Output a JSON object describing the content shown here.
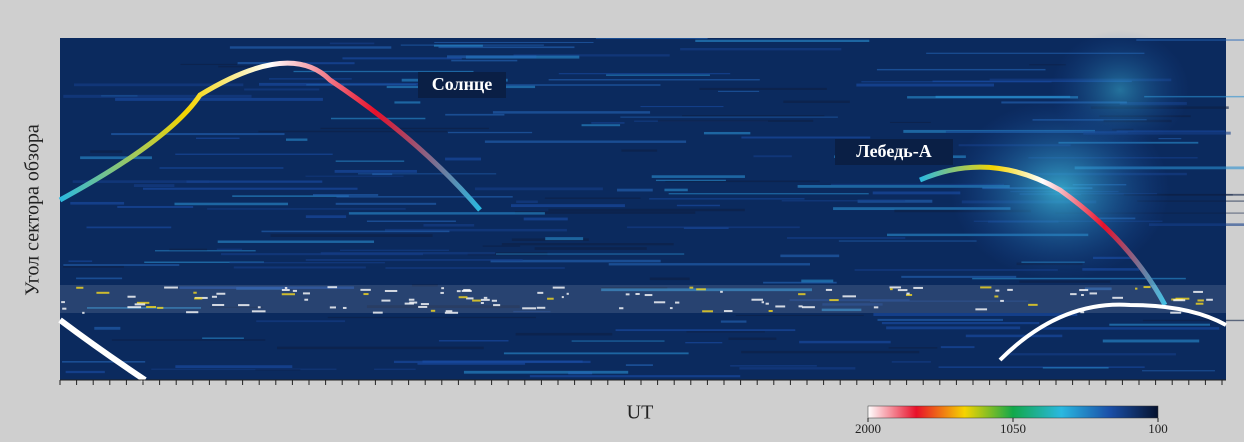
{
  "chart_data": {
    "type": "heatmap",
    "ylabel": "Угол сектора обзора",
    "xlabel": "UT",
    "annotations": [
      "Солнце",
      "Лебедь-А"
    ],
    "colorbar": {
      "lim": [
        2000,
        100
      ],
      "ticks": [
        2000,
        1050,
        100
      ],
      "colors": [
        "#ffffff",
        "#e8102a",
        "#f5d400",
        "#12a84a",
        "#2ab8e0",
        "#1a4fa8",
        "#05122e"
      ]
    }
  }
}
